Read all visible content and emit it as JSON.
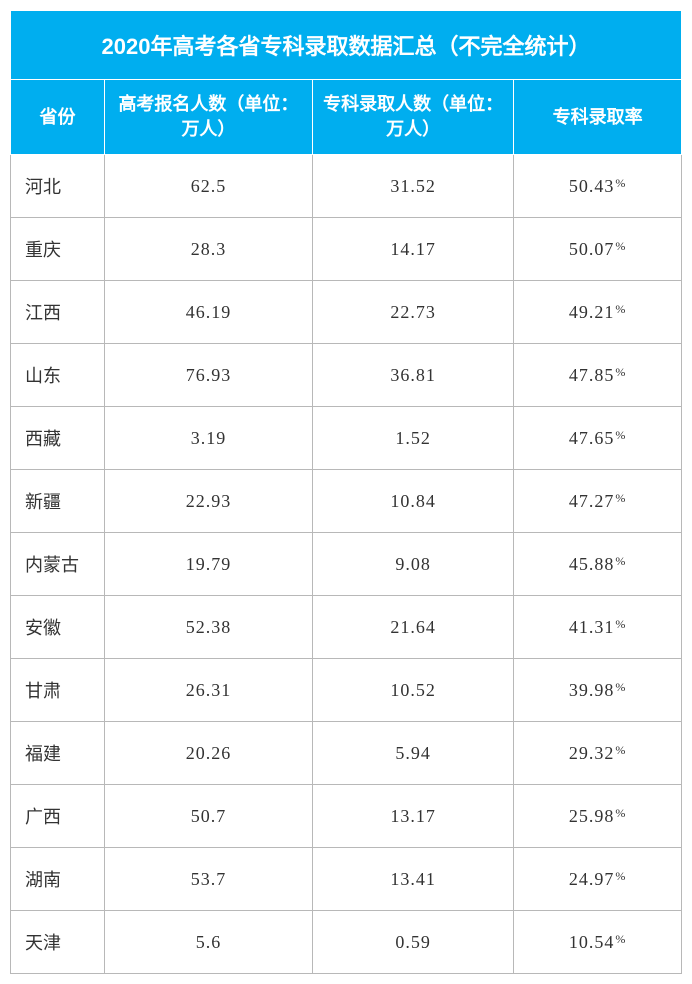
{
  "table": {
    "type": "table",
    "title": "2020年高考各省专科录取数据汇总（不完全统计）",
    "background_color": "#ffffff",
    "header_bg": "#00aeef",
    "header_text_color": "#ffffff",
    "border_color": "#b8b8b8",
    "cell_text_color": "#333333",
    "title_fontsize": 22,
    "header_fontsize": 18,
    "cell_fontsize": 18,
    "columns": [
      {
        "key": "province",
        "label": "省份",
        "align": "left"
      },
      {
        "key": "applicants",
        "label": "高考报名人数（单位：万人）",
        "align": "center"
      },
      {
        "key": "admitted",
        "label": "专科录取人数（单位：万人）",
        "align": "center"
      },
      {
        "key": "rate",
        "label": "专科录取率",
        "align": "center"
      }
    ],
    "rows": [
      {
        "province": "河北",
        "applicants": "62.5",
        "admitted": "31.52",
        "rate": "50.43"
      },
      {
        "province": "重庆",
        "applicants": "28.3",
        "admitted": "14.17",
        "rate": "50.07"
      },
      {
        "province": "江西",
        "applicants": "46.19",
        "admitted": "22.73",
        "rate": "49.21"
      },
      {
        "province": "山东",
        "applicants": "76.93",
        "admitted": "36.81",
        "rate": "47.85"
      },
      {
        "province": "西藏",
        "applicants": "3.19",
        "admitted": "1.52",
        "rate": "47.65"
      },
      {
        "province": "新疆",
        "applicants": "22.93",
        "admitted": "10.84",
        "rate": "47.27"
      },
      {
        "province": "内蒙古",
        "applicants": "19.79",
        "admitted": "9.08",
        "rate": "45.88"
      },
      {
        "province": "安徽",
        "applicants": "52.38",
        "admitted": "21.64",
        "rate": "41.31"
      },
      {
        "province": "甘肃",
        "applicants": "26.31",
        "admitted": "10.52",
        "rate": "39.98"
      },
      {
        "province": "福建",
        "applicants": "20.26",
        "admitted": "5.94",
        "rate": "29.32"
      },
      {
        "province": "广西",
        "applicants": "50.7",
        "admitted": "13.17",
        "rate": "25.98"
      },
      {
        "province": "湖南",
        "applicants": "53.7",
        "admitted": "13.41",
        "rate": "24.97"
      },
      {
        "province": "天津",
        "applicants": "5.6",
        "admitted": "0.59",
        "rate": "10.54"
      }
    ],
    "percent_symbol": "%"
  }
}
